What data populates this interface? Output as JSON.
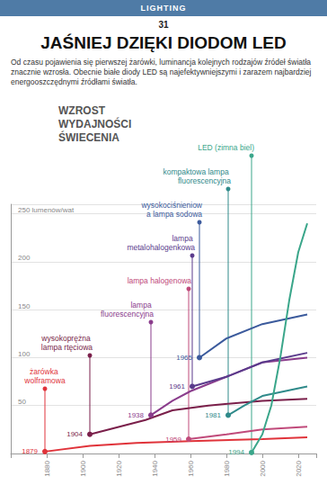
{
  "page": {
    "section": "LIGHTING",
    "number": "31",
    "headline": "JAŚNIEJ DZIĘKI DIODOM LED",
    "intro": "Od czasu pojawienia się pierwszej żarówki, luminancja kolejnych rodzajów źródeł światła znacznie wzrosła. Obecnie białe diody LED są najefektywniejszymi i zarazem najbardziej energooszczędnymi źródłami światła."
  },
  "chart_data": {
    "type": "line",
    "title": "WZROST WYDAJNOŚCI ŚWIECENIA",
    "xlim": [
      1860,
      2030
    ],
    "xticks": [
      1880,
      1900,
      1920,
      1940,
      1960,
      1980,
      2000,
      2020
    ],
    "ylim": [
      0,
      260
    ],
    "yticks": [
      50,
      100,
      150,
      200,
      {
        "value": 250,
        "label": "250 lumenów/wat"
      }
    ],
    "grid": true,
    "series": [
      {
        "name": "żarówka wolframowa",
        "color": "#e0333a",
        "x": [
          1879,
          1904,
          1930,
          1960,
          2000,
          2025
        ],
        "values": [
          2,
          8,
          11,
          13,
          15,
          17
        ]
      },
      {
        "name": "wysokoprężna lampa rtęciowa",
        "color": "#7a1f4a",
        "x": [
          1904,
          1935,
          1950,
          1970,
          2000,
          2025
        ],
        "values": [
          20,
          35,
          45,
          50,
          55,
          57
        ]
      },
      {
        "name": "lampa fluorescencyjna",
        "color": "#8a3c8c",
        "x": [
          1938,
          1950,
          1960,
          1980,
          2000,
          2025
        ],
        "values": [
          40,
          55,
          65,
          80,
          95,
          100
        ]
      },
      {
        "name": "lampa halogenowa",
        "color": "#c04a7a",
        "x": [
          1959,
          1980,
          2000,
          2025
        ],
        "values": [
          15,
          20,
          25,
          28
        ]
      },
      {
        "name": "lampa metalohalogenkowa",
        "color": "#5a3b8c",
        "x": [
          1961,
          1980,
          2000,
          2025
        ],
        "values": [
          70,
          80,
          95,
          105
        ]
      },
      {
        "name": "wysokociśnieniowa lampa sodowa",
        "color": "#3b5a9c",
        "x": [
          1965,
          1980,
          2000,
          2025
        ],
        "values": [
          100,
          120,
          135,
          145
        ]
      },
      {
        "name": "kompaktowa lampa fluorescencyjna",
        "color": "#2f8a8a",
        "x": [
          1981,
          1990,
          2000,
          2025
        ],
        "values": [
          40,
          50,
          60,
          70
        ]
      },
      {
        "name": "LED (zimna biel)",
        "color": "#3aa68a",
        "x": [
          1994,
          2000,
          2005,
          2010,
          2015,
          2020,
          2025
        ],
        "values": [
          1,
          20,
          50,
          100,
          160,
          210,
          240
        ]
      }
    ]
  }
}
